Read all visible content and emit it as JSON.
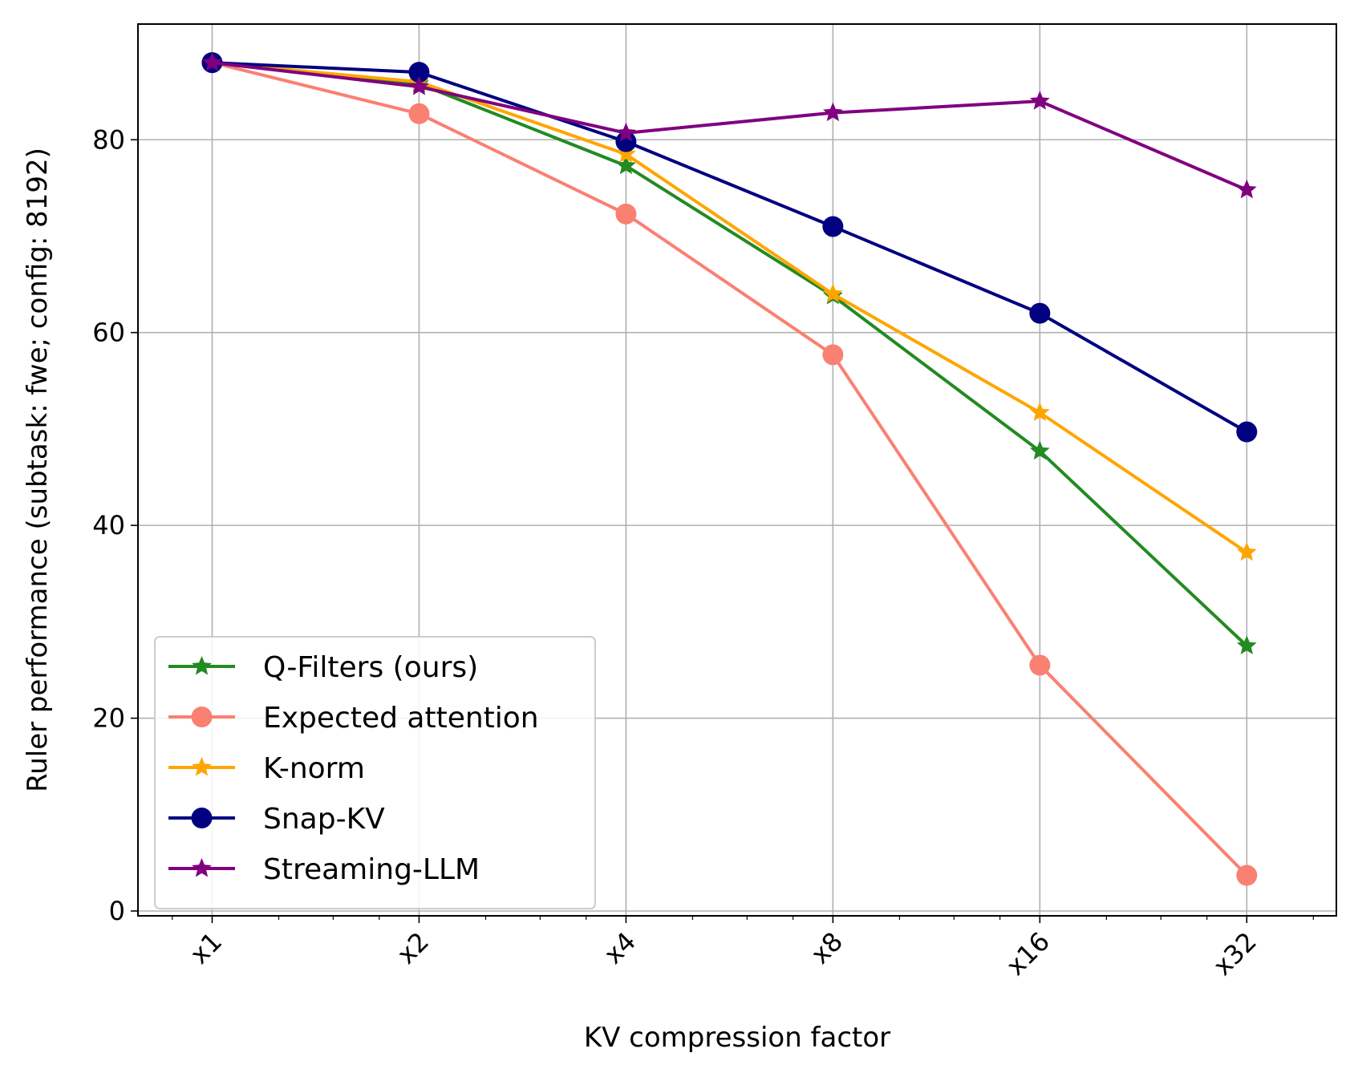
{
  "chart_data": {
    "type": "line",
    "title": "",
    "xlabel": "KV compression factor",
    "ylabel": "Ruler performance (subtask: fwe; config: 8192)",
    "x_scale": "log2",
    "x": [
      1,
      2,
      4,
      8,
      16,
      32
    ],
    "x_tick_labels": [
      "x1",
      "x2",
      "x4",
      "x8",
      "x16",
      "x32"
    ],
    "y_ticks": [
      0,
      20,
      40,
      60,
      80
    ],
    "ylim": [
      -0.5,
      92
    ],
    "grid": true,
    "legend_position": "lower-left",
    "series": [
      {
        "name": "Q-Filters (ours)",
        "color": "#228B22",
        "marker": "star",
        "values": [
          88.0,
          85.8,
          77.3,
          63.8,
          47.7,
          27.5
        ]
      },
      {
        "name": "Expected attention",
        "color": "#FA8072",
        "marker": "circle",
        "values": [
          88.0,
          82.7,
          72.3,
          57.7,
          25.5,
          3.7
        ]
      },
      {
        "name": "K-norm",
        "color": "#FFA500",
        "marker": "star",
        "values": [
          88.0,
          86.0,
          78.5,
          64.0,
          51.7,
          37.2
        ]
      },
      {
        "name": "Snap-KV",
        "color": "#000080",
        "marker": "circle",
        "values": [
          88.0,
          87.0,
          79.8,
          71.0,
          62.0,
          49.7
        ]
      },
      {
        "name": "Streaming-LLM",
        "color": "#800080",
        "marker": "star",
        "values": [
          88.0,
          85.5,
          80.7,
          82.8,
          84.0,
          74.8
        ]
      }
    ]
  }
}
